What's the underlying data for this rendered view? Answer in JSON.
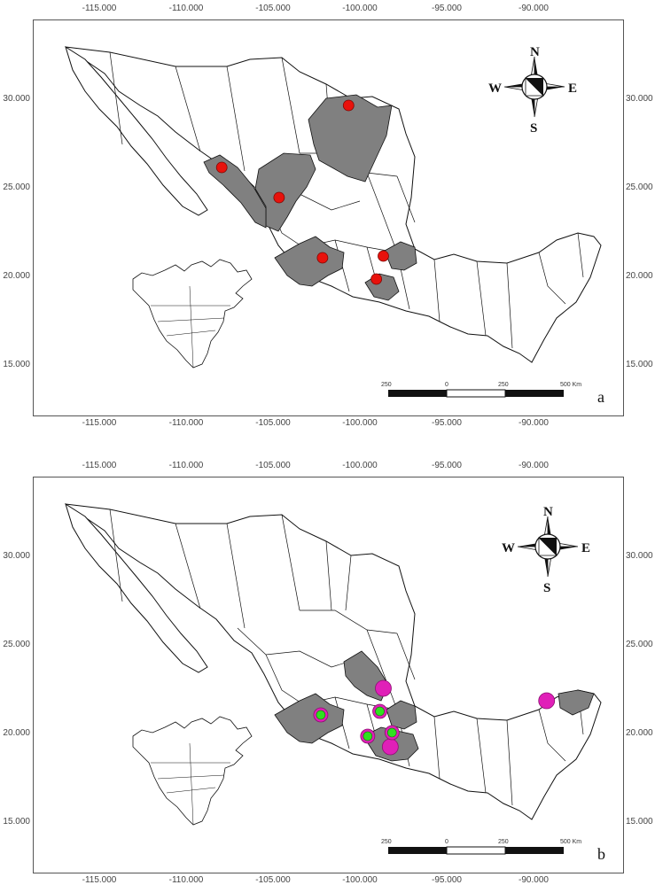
{
  "axes": {
    "x_ticks": [
      "-115.000",
      "-110.000",
      "-105.000",
      "-100.000",
      "-95.000",
      "-90.000"
    ],
    "y_ticks": [
      "30.000",
      "25.000",
      "20.000",
      "15.000"
    ]
  },
  "compass": {
    "n": "N",
    "s": "S",
    "e": "E",
    "w": "W"
  },
  "scalebar": {
    "labels": [
      "250",
      "0",
      "250",
      "500 Km"
    ]
  },
  "colors": {
    "land_fill": "#ffffff",
    "highlight_fill": "#808080",
    "border": "#111111",
    "marker_red": "#e8120c",
    "marker_magenta": "#e020b8",
    "marker_green": "#30e020"
  },
  "panels": [
    {
      "letter": "a",
      "markers": [
        {
          "type": "red",
          "lon": -100.7,
          "lat": 29.7
        },
        {
          "type": "red",
          "lon": -108.0,
          "lat": 26.2
        },
        {
          "type": "red",
          "lon": -104.7,
          "lat": 24.5
        },
        {
          "type": "red",
          "lon": -102.2,
          "lat": 21.1
        },
        {
          "type": "red",
          "lon": -98.7,
          "lat": 21.2
        },
        {
          "type": "red",
          "lon": -99.1,
          "lat": 19.9
        }
      ]
    },
    {
      "letter": "b",
      "markers": [
        {
          "type": "magenta",
          "lon": -98.7,
          "lat": 22.6
        },
        {
          "type": "magenta",
          "lon": -89.3,
          "lat": 21.9
        },
        {
          "type": "magenta",
          "lon": -98.3,
          "lat": 19.3
        },
        {
          "type": "ring",
          "lon": -102.3,
          "lat": 21.1
        },
        {
          "type": "ring",
          "lon": -98.9,
          "lat": 21.3
        },
        {
          "type": "ring",
          "lon": -99.6,
          "lat": 19.9
        },
        {
          "type": "ring",
          "lon": -98.2,
          "lat": 20.1
        }
      ]
    }
  ]
}
